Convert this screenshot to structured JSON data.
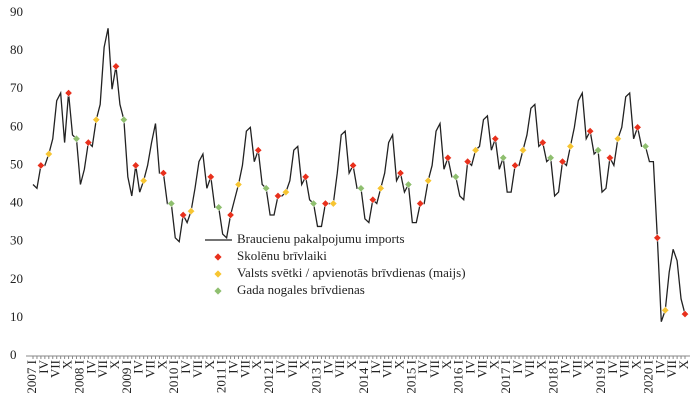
{
  "chart_data": {
    "type": "line",
    "ylim": [
      0,
      90
    ],
    "yticks": [
      0,
      10,
      20,
      30,
      40,
      50,
      60,
      70,
      80,
      90
    ],
    "legend": "lower-center",
    "categories": [
      "2007 I",
      null,
      null,
      "IV",
      null,
      null,
      "VII",
      null,
      null,
      "X",
      null,
      null,
      "2008 I",
      null,
      null,
      "IV",
      null,
      null,
      "VII",
      null,
      null,
      "X",
      null,
      null,
      "2009 I",
      null,
      null,
      "IV",
      null,
      null,
      "VII",
      null,
      null,
      "X",
      null,
      null,
      "2010 I",
      null,
      null,
      "IV",
      null,
      null,
      "VII",
      null,
      null,
      "X",
      null,
      null,
      "2011 I",
      null,
      null,
      "IV",
      null,
      null,
      "VII",
      null,
      null,
      "X",
      null,
      null,
      "2012 I",
      null,
      null,
      "IV",
      null,
      null,
      "VII",
      null,
      null,
      "X",
      null,
      null,
      "2013 I",
      null,
      null,
      "IV",
      null,
      null,
      "VII",
      null,
      null,
      "X",
      null,
      null,
      "2014 I",
      null,
      null,
      "IV",
      null,
      null,
      "VII",
      null,
      null,
      "X",
      null,
      null,
      "2015 I",
      null,
      null,
      "IV",
      null,
      null,
      "VII",
      null,
      null,
      "X",
      null,
      null,
      "2016 I",
      null,
      null,
      "IV",
      null,
      null,
      "VII",
      null,
      null,
      "X",
      null,
      null,
      "2017 I",
      null,
      null,
      "IV",
      null,
      null,
      "VII",
      null,
      null,
      "X",
      null,
      null,
      "2018 I",
      null,
      null,
      "IV",
      null,
      null,
      "VII",
      null,
      null,
      "X",
      null,
      null,
      "2019 I",
      null,
      null,
      "IV",
      null,
      null,
      "VII",
      null,
      null,
      "X",
      null,
      null,
      "2020 I",
      null,
      null,
      "IV",
      null,
      null,
      "VII",
      null,
      null,
      "X"
    ],
    "series": [
      {
        "name": "Braucienu pakalpojumu imports",
        "color": "#222222",
        "mode": "line",
        "values": [
          45,
          44,
          50,
          50,
          53,
          57,
          67,
          69,
          56,
          69,
          58,
          57,
          45,
          49,
          56,
          55,
          62,
          66,
          81,
          86,
          70,
          76,
          66,
          62,
          47,
          42,
          50,
          43,
          46,
          50,
          56,
          61,
          48,
          48,
          40,
          40,
          31,
          30,
          37,
          35,
          38,
          44,
          51,
          53,
          44,
          47,
          39,
          39,
          32,
          31,
          37,
          41,
          45,
          50,
          59,
          60,
          51,
          54,
          45,
          44,
          37,
          37,
          42,
          42,
          43,
          46,
          54,
          55,
          45,
          47,
          41,
          40,
          34,
          34,
          40,
          40,
          40,
          48,
          58,
          59,
          48,
          50,
          44,
          44,
          36,
          35,
          41,
          40,
          44,
          48,
          56,
          58,
          46,
          48,
          43,
          45,
          35,
          35,
          40,
          40,
          46,
          50,
          59,
          61,
          49,
          52,
          47,
          47,
          42,
          41,
          51,
          50,
          54,
          55,
          62,
          63,
          54,
          57,
          49,
          52,
          43,
          43,
          50,
          50,
          54,
          58,
          65,
          66,
          55,
          56,
          51,
          52,
          42,
          43,
          51,
          50,
          55,
          60,
          67,
          69,
          57,
          59,
          53,
          54,
          43,
          44,
          52,
          50,
          57,
          60,
          68,
          69,
          57,
          60,
          55,
          55,
          51,
          51,
          31,
          9,
          12,
          22,
          28,
          25,
          15,
          11
        ]
      },
      {
        "name": "Skolēnu brīvlaiki",
        "color": "#e8301c",
        "mode": "markers",
        "values": [
          null,
          null,
          50,
          null,
          null,
          null,
          null,
          null,
          null,
          69,
          null,
          null,
          null,
          null,
          56,
          null,
          null,
          null,
          null,
          null,
          null,
          76,
          null,
          null,
          null,
          null,
          50,
          null,
          null,
          null,
          null,
          null,
          null,
          48,
          null,
          null,
          null,
          null,
          37,
          null,
          null,
          null,
          null,
          null,
          null,
          47,
          null,
          null,
          null,
          null,
          37,
          null,
          null,
          null,
          null,
          null,
          null,
          54,
          null,
          null,
          null,
          null,
          42,
          null,
          null,
          null,
          null,
          null,
          null,
          47,
          null,
          null,
          null,
          null,
          40,
          null,
          null,
          null,
          null,
          null,
          null,
          50,
          null,
          null,
          null,
          null,
          41,
          null,
          null,
          null,
          null,
          null,
          null,
          48,
          null,
          null,
          null,
          null,
          40,
          null,
          null,
          null,
          null,
          null,
          null,
          52,
          null,
          null,
          null,
          null,
          51,
          null,
          null,
          null,
          null,
          null,
          null,
          57,
          null,
          null,
          null,
          null,
          50,
          null,
          null,
          null,
          null,
          null,
          null,
          56,
          null,
          null,
          null,
          null,
          51,
          null,
          null,
          null,
          null,
          null,
          null,
          59,
          null,
          null,
          null,
          null,
          52,
          null,
          null,
          null,
          null,
          null,
          null,
          60,
          null,
          null,
          null,
          null,
          31,
          null,
          null,
          null,
          null,
          null,
          null,
          11
        ]
      },
      {
        "name": "Valsts svētki / apvienotās brīvdienas (maijs)",
        "color": "#f7c531",
        "mode": "markers",
        "values": [
          null,
          null,
          null,
          null,
          53,
          null,
          null,
          null,
          null,
          null,
          null,
          null,
          null,
          null,
          null,
          null,
          62,
          null,
          null,
          null,
          null,
          null,
          null,
          null,
          null,
          null,
          null,
          null,
          46,
          null,
          null,
          null,
          null,
          null,
          null,
          null,
          null,
          null,
          null,
          null,
          38,
          null,
          null,
          null,
          null,
          null,
          null,
          null,
          null,
          null,
          null,
          null,
          45,
          null,
          null,
          null,
          null,
          null,
          null,
          null,
          null,
          null,
          null,
          null,
          43,
          null,
          null,
          null,
          null,
          null,
          null,
          null,
          null,
          null,
          null,
          null,
          40,
          null,
          null,
          null,
          null,
          null,
          null,
          null,
          null,
          null,
          null,
          null,
          44,
          null,
          null,
          null,
          null,
          null,
          null,
          null,
          null,
          null,
          null,
          null,
          46,
          null,
          null,
          null,
          null,
          null,
          null,
          null,
          null,
          null,
          null,
          null,
          54,
          null,
          null,
          null,
          null,
          null,
          null,
          null,
          null,
          null,
          null,
          null,
          54,
          null,
          null,
          null,
          null,
          null,
          null,
          null,
          null,
          null,
          null,
          null,
          55,
          null,
          null,
          null,
          null,
          null,
          null,
          null,
          null,
          null,
          null,
          null,
          57,
          null,
          null,
          null,
          null,
          null,
          null,
          null,
          null,
          null,
          null,
          null,
          12,
          null,
          null,
          null,
          null,
          null
        ]
      },
      {
        "name": "Gada nogales brīvdienas",
        "color": "#8fbf6f",
        "mode": "markers",
        "values": [
          null,
          null,
          null,
          null,
          null,
          null,
          null,
          null,
          null,
          null,
          null,
          57,
          null,
          null,
          null,
          null,
          null,
          null,
          null,
          null,
          null,
          null,
          null,
          62,
          null,
          null,
          null,
          null,
          null,
          null,
          null,
          null,
          null,
          null,
          null,
          40,
          null,
          null,
          null,
          null,
          null,
          null,
          null,
          null,
          null,
          null,
          null,
          39,
          null,
          null,
          null,
          null,
          null,
          null,
          null,
          null,
          null,
          null,
          null,
          44,
          null,
          null,
          null,
          null,
          null,
          null,
          null,
          null,
          null,
          null,
          null,
          40,
          null,
          null,
          null,
          null,
          null,
          null,
          null,
          null,
          null,
          null,
          null,
          44,
          null,
          null,
          null,
          null,
          null,
          null,
          null,
          null,
          null,
          null,
          null,
          45,
          null,
          null,
          null,
          null,
          null,
          null,
          null,
          null,
          null,
          null,
          null,
          47,
          null,
          null,
          null,
          null,
          null,
          null,
          null,
          null,
          null,
          null,
          null,
          52,
          null,
          null,
          null,
          null,
          null,
          null,
          null,
          null,
          null,
          null,
          null,
          52,
          null,
          null,
          null,
          null,
          null,
          null,
          null,
          null,
          null,
          null,
          null,
          54,
          null,
          null,
          null,
          null,
          null,
          null,
          null,
          null,
          null,
          null,
          null,
          55,
          null,
          null,
          null,
          null,
          null,
          null,
          null,
          null,
          null,
          null
        ]
      }
    ]
  }
}
